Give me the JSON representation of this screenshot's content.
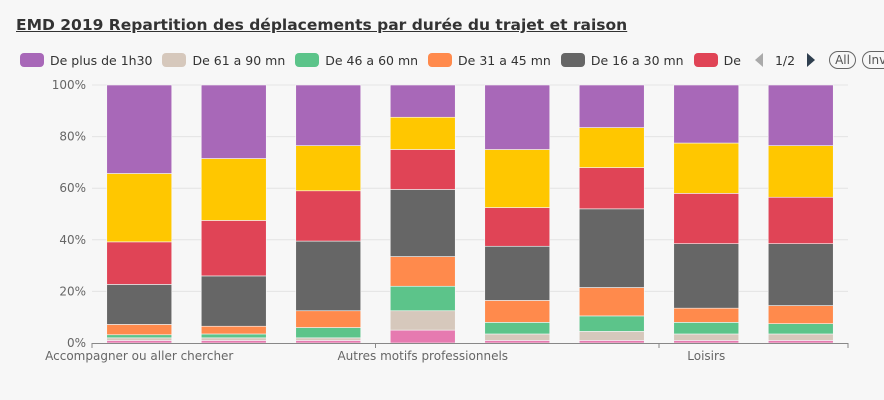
{
  "chart_data": {
    "type": "bar",
    "stacked": "percent",
    "title": "EMD 2019 Repartition des déplacements par durée du trajet et raison",
    "xlabel": "",
    "ylabel": "",
    "ylim": [
      0,
      100
    ],
    "yticks": [
      "0%",
      "20%",
      "40%",
      "60%",
      "80%",
      "100%"
    ],
    "x_tick_labels": [
      {
        "label": "Accompagner ou aller chercher",
        "at": 0.5
      },
      {
        "label": "Autres motifs professionnels",
        "at": 3.5
      },
      {
        "label": "Loisirs",
        "at": 6.5
      }
    ],
    "grid": true,
    "legend_position": "top",
    "categories": [
      "",
      "",
      "",
      "",
      "",
      "",
      "",
      ""
    ],
    "series": [
      {
        "name": "",
        "color": "#e67ab0",
        "values": [
          1,
          1,
          1,
          5,
          1,
          1,
          1,
          1
        ]
      },
      {
        "name": "De 61 a 90 mn",
        "color": "#d6c8bc",
        "values": [
          1,
          1,
          1,
          7.5,
          2.5,
          3.5,
          2.5,
          2.5
        ]
      },
      {
        "name": "De 46 a 60 mn",
        "color": "#5cc48a",
        "values": [
          1.2,
          1.5,
          4,
          9.5,
          4.5,
          6,
          4.5,
          4
        ]
      },
      {
        "name": "De 31 a 45 mn",
        "color": "#ff8a4c",
        "values": [
          4,
          3,
          6.5,
          11.5,
          8.5,
          11,
          5.5,
          7
        ]
      },
      {
        "name": "De 16 a 30 mn",
        "color": "#666666",
        "values": [
          15.5,
          19.5,
          27,
          26,
          21,
          30.5,
          25,
          24
        ]
      },
      {
        "name": "De",
        "color": "#e04456",
        "values": [
          16.5,
          21.5,
          19.5,
          15.5,
          15,
          16,
          19.5,
          18
        ]
      },
      {
        "name": "",
        "color": "#ffc700",
        "values": [
          26.5,
          24,
          17.5,
          12.5,
          22.5,
          15.5,
          19.5,
          20
        ]
      },
      {
        "name": "De plus de 1h30",
        "color": "#a868b8",
        "values": [
          34.3,
          28.5,
          23.5,
          12.5,
          25,
          16.5,
          22.5,
          23.5
        ]
      }
    ]
  },
  "legend": {
    "items": [
      {
        "label": "De plus de 1h30",
        "color": "#a868b8"
      },
      {
        "label": "De 61 a 90 mn",
        "color": "#d6c8bc"
      },
      {
        "label": "De 46 a 60 mn",
        "color": "#5cc48a"
      },
      {
        "label": "De 31 a 45 mn",
        "color": "#ff8a4c"
      },
      {
        "label": "De 16 a 30 mn",
        "color": "#666666"
      },
      {
        "label": "De",
        "color": "#e04456"
      }
    ],
    "page": "1/2",
    "all_label": "All",
    "inv_label": "Inv"
  }
}
